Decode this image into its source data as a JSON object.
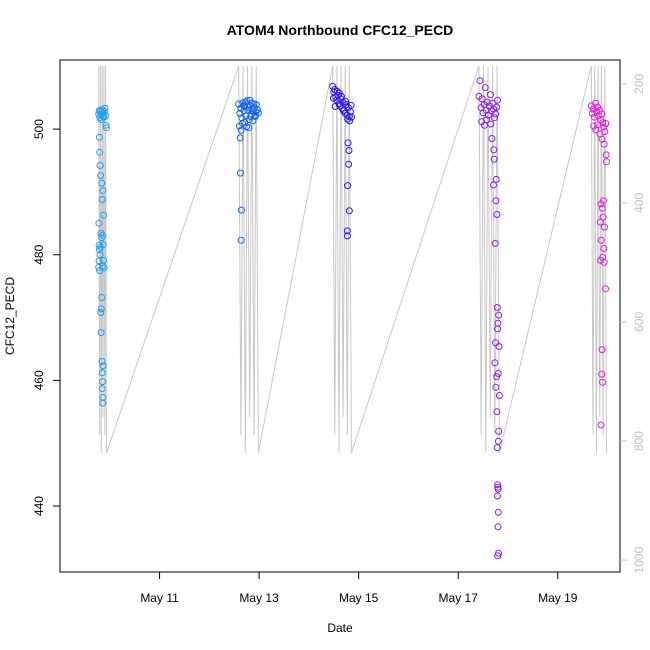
{
  "chart_data": {
    "type": "scatter",
    "title": "ATOM4 Northbound CFC12_PECD",
    "xlabel": "Date",
    "ylabel": "CFC12_PECD",
    "xlim": [
      "2016-05-09T00:00",
      "2016-05-20T06:00"
    ],
    "ylim": [
      429.5,
      511
    ],
    "y2lim": [
      1020,
      160
    ],
    "x_ticks": [
      {
        "date": "2016-05-11",
        "label": "May 11"
      },
      {
        "date": "2016-05-13",
        "label": "May 13"
      },
      {
        "date": "2016-05-15",
        "label": "May 15"
      },
      {
        "date": "2016-05-17",
        "label": "May 17"
      },
      {
        "date": "2016-05-19",
        "label": "May 19"
      }
    ],
    "y_ticks": [
      440,
      460,
      480,
      500
    ],
    "y2_ticks": [
      200,
      400,
      600,
      800,
      1000
    ],
    "colors": {
      "flight1": "#1f9fef",
      "flight2": "#1565e8",
      "flight3": "#2a17ea",
      "flight4": "#8a1bf2",
      "flight5": "#e51ae0",
      "pressure_line": "#c8c8c8"
    },
    "grid": false,
    "legend": "none",
    "series": [
      {
        "color_key": "flight1",
        "points": [
          [
            "2016-05-09T18:40",
            502.4
          ],
          [
            "2016-05-09T18:55",
            502.9
          ],
          [
            "2016-05-09T19:10",
            501.8
          ],
          [
            "2016-05-09T19:25",
            503.0
          ],
          [
            "2016-05-09T19:40",
            502.2
          ],
          [
            "2016-05-09T19:55",
            501.5
          ],
          [
            "2016-05-09T20:10",
            502.7
          ],
          [
            "2016-05-09T20:25",
            503.1
          ],
          [
            "2016-05-09T20:40",
            502.0
          ],
          [
            "2016-05-09T20:55",
            502.5
          ],
          [
            "2016-05-09T21:10",
            501.9
          ],
          [
            "2016-05-09T21:25",
            502.8
          ],
          [
            "2016-05-09T21:40",
            503.3
          ],
          [
            "2016-05-09T21:55",
            502.1
          ],
          [
            "2016-05-09T22:10",
            500.6
          ],
          [
            "2016-05-09T22:25",
            500.2
          ],
          [
            "2016-05-09T19:00",
            498.7
          ],
          [
            "2016-05-09T19:05",
            496.3
          ],
          [
            "2016-05-09T19:20",
            494.2
          ],
          [
            "2016-05-09T19:35",
            492.6
          ],
          [
            "2016-05-09T18:45",
            485.0
          ],
          [
            "2016-05-09T18:50",
            481.5
          ],
          [
            "2016-05-09T19:00",
            480.8
          ],
          [
            "2016-05-09T19:15",
            480.0
          ],
          [
            "2016-05-09T18:50",
            479.0
          ],
          [
            "2016-05-09T18:40",
            478.0
          ],
          [
            "2016-05-09T19:05",
            477.5
          ],
          [
            "2016-05-09T19:30",
            481.2
          ],
          [
            "2016-05-09T19:45",
            483.4
          ],
          [
            "2016-05-09T20:00",
            482.7
          ],
          [
            "2016-05-09T20:30",
            483.1
          ],
          [
            "2016-05-09T20:50",
            481.6
          ],
          [
            "2016-05-09T20:20",
            488.8
          ],
          [
            "2016-05-09T21:00",
            486.3
          ],
          [
            "2016-05-09T20:05",
            491.4
          ],
          [
            "2016-05-09T20:40",
            490.2
          ],
          [
            "2016-05-09T21:05",
            479.1
          ],
          [
            "2016-05-09T21:15",
            477.9
          ],
          [
            "2016-05-09T20:35",
            478.2
          ],
          [
            "2016-05-09T20:10",
            473.2
          ],
          [
            "2016-05-09T19:55",
            471.4
          ],
          [
            "2016-05-09T19:40",
            470.8
          ],
          [
            "2016-05-09T19:50",
            467.6
          ],
          [
            "2016-05-09T20:15",
            463.0
          ],
          [
            "2016-05-09T20:25",
            461.2
          ],
          [
            "2016-05-09T20:30",
            459.8
          ],
          [
            "2016-05-09T20:20",
            458.7
          ],
          [
            "2016-05-09T20:40",
            457.3
          ],
          [
            "2016-05-09T20:35",
            456.4
          ],
          [
            "2016-05-09T20:45",
            462.3
          ]
        ]
      },
      {
        "color_key": "flight2",
        "points": [
          [
            "2016-05-12T14:10",
            504.0
          ],
          [
            "2016-05-12T14:40",
            502.5
          ],
          [
            "2016-05-12T15:10",
            503.3
          ],
          [
            "2016-05-12T15:40",
            501.8
          ],
          [
            "2016-05-12T16:10",
            504.2
          ],
          [
            "2016-05-12T16:40",
            502.9
          ],
          [
            "2016-05-12T17:10",
            503.6
          ],
          [
            "2016-05-12T17:40",
            502.1
          ],
          [
            "2016-05-12T18:10",
            504.5
          ],
          [
            "2016-05-12T18:40",
            503.0
          ],
          [
            "2016-05-12T19:10",
            501.5
          ],
          [
            "2016-05-12T19:40",
            503.8
          ],
          [
            "2016-05-12T20:10",
            502.4
          ],
          [
            "2016-05-12T20:40",
            504.1
          ],
          [
            "2016-05-12T21:10",
            502.8
          ],
          [
            "2016-05-12T21:40",
            503.4
          ],
          [
            "2016-05-12T22:10",
            502.0
          ],
          [
            "2016-05-12T22:40",
            503.9
          ],
          [
            "2016-05-12T14:30",
            500.5
          ],
          [
            "2016-05-12T15:20",
            499.8
          ],
          [
            "2016-05-12T16:00",
            500.9
          ],
          [
            "2016-05-12T17:00",
            501.1
          ],
          [
            "2016-05-12T18:00",
            500.4
          ],
          [
            "2016-05-12T19:00",
            500.2
          ],
          [
            "2016-05-12T20:00",
            502.0
          ],
          [
            "2016-05-12T21:00",
            501.3
          ],
          [
            "2016-05-12T22:00",
            502.2
          ],
          [
            "2016-05-12T23:10",
            503.1
          ],
          [
            "2016-05-12T23:40",
            502.6
          ],
          [
            "2016-05-12T15:00",
            493.0
          ],
          [
            "2016-05-12T15:30",
            487.1
          ],
          [
            "2016-05-12T15:20",
            482.3
          ],
          [
            "2016-05-12T14:50",
            498.6
          ],
          [
            "2016-05-12T16:30",
            503.7
          ],
          [
            "2016-05-12T17:30",
            504.3
          ],
          [
            "2016-05-12T18:30",
            503.5
          ],
          [
            "2016-05-12T19:30",
            504.6
          ],
          [
            "2016-05-12T20:30",
            503.2
          ],
          [
            "2016-05-12T21:30",
            504.0
          ],
          [
            "2016-05-12T22:30",
            502.7
          ]
        ]
      },
      {
        "color_key": "flight3",
        "points": [
          [
            "2016-05-14T11:30",
            506.8
          ],
          [
            "2016-05-14T12:00",
            505.9
          ],
          [
            "2016-05-14T12:30",
            506.3
          ],
          [
            "2016-05-14T13:00",
            505.1
          ],
          [
            "2016-05-14T13:30",
            504.6
          ],
          [
            "2016-05-14T14:00",
            505.4
          ],
          [
            "2016-05-14T14:30",
            504.0
          ],
          [
            "2016-05-14T15:00",
            503.7
          ],
          [
            "2016-05-14T15:30",
            504.8
          ],
          [
            "2016-05-14T16:00",
            503.3
          ],
          [
            "2016-05-14T16:30",
            504.2
          ],
          [
            "2016-05-14T17:00",
            503.0
          ],
          [
            "2016-05-14T17:30",
            502.5
          ],
          [
            "2016-05-14T18:00",
            503.9
          ],
          [
            "2016-05-14T18:30",
            502.2
          ],
          [
            "2016-05-14T19:00",
            503.4
          ],
          [
            "2016-05-14T19:30",
            502.0
          ],
          [
            "2016-05-14T20:00",
            502.8
          ],
          [
            "2016-05-14T11:50",
            504.9
          ],
          [
            "2016-05-14T12:40",
            503.6
          ],
          [
            "2016-05-14T13:40",
            506.0
          ],
          [
            "2016-05-14T14:40",
            505.7
          ],
          [
            "2016-05-14T15:40",
            505.2
          ],
          [
            "2016-05-14T16:40",
            502.9
          ],
          [
            "2016-05-14T17:40",
            504.4
          ],
          [
            "2016-05-14T18:40",
            501.6
          ],
          [
            "2016-05-14T19:40",
            501.3
          ],
          [
            "2016-05-14T20:20",
            503.8
          ],
          [
            "2016-05-14T20:30",
            501.9
          ],
          [
            "2016-05-14T18:50",
            497.8
          ],
          [
            "2016-05-14T19:20",
            496.6
          ],
          [
            "2016-05-14T19:10",
            494.4
          ],
          [
            "2016-05-14T18:40",
            491.0
          ],
          [
            "2016-05-14T19:30",
            487.0
          ],
          [
            "2016-05-14T18:30",
            483.8
          ],
          [
            "2016-05-14T18:35",
            483.0
          ]
        ]
      },
      {
        "color_key": "flight4",
        "points": [
          [
            "2016-05-17T10:00",
            505.2
          ],
          [
            "2016-05-17T10:30",
            507.7
          ],
          [
            "2016-05-17T11:00",
            503.4
          ],
          [
            "2016-05-17T11:30",
            504.8
          ],
          [
            "2016-05-17T12:00",
            502.6
          ],
          [
            "2016-05-17T12:30",
            503.9
          ],
          [
            "2016-05-17T13:00",
            506.6
          ],
          [
            "2016-05-17T13:30",
            503.0
          ],
          [
            "2016-05-17T14:00",
            504.3
          ],
          [
            "2016-05-17T14:30",
            502.2
          ],
          [
            "2016-05-17T15:00",
            503.7
          ],
          [
            "2016-05-17T15:30",
            505.5
          ],
          [
            "2016-05-17T16:00",
            502.9
          ],
          [
            "2016-05-17T16:30",
            504.1
          ],
          [
            "2016-05-17T17:00",
            503.2
          ],
          [
            "2016-05-17T17:30",
            501.8
          ],
          [
            "2016-05-17T18:00",
            502.4
          ],
          [
            "2016-05-17T18:30",
            503.5
          ],
          [
            "2016-05-17T19:00",
            504.6
          ],
          [
            "2016-05-17T11:20",
            501.2
          ],
          [
            "2016-05-17T12:40",
            500.6
          ],
          [
            "2016-05-17T13:40",
            501.5
          ],
          [
            "2016-05-17T15:40",
            500.8
          ],
          [
            "2016-05-17T16:10",
            498.5
          ],
          [
            "2016-05-17T17:10",
            496.7
          ],
          [
            "2016-05-17T17:20",
            495.2
          ],
          [
            "2016-05-17T18:20",
            492.0
          ],
          [
            "2016-05-17T17:00",
            491.1
          ],
          [
            "2016-05-17T18:10",
            488.6
          ],
          [
            "2016-05-17T18:40",
            486.4
          ],
          [
            "2016-05-17T17:50",
            481.8
          ],
          [
            "2016-05-17T19:30",
            470.4
          ],
          [
            "2016-05-17T19:10",
            469.1
          ],
          [
            "2016-05-17T18:50",
            471.6
          ],
          [
            "2016-05-17T19:00",
            468.2
          ],
          [
            "2016-05-17T18:00",
            466.0
          ],
          [
            "2016-05-17T19:40",
            465.4
          ],
          [
            "2016-05-17T17:40",
            462.8
          ],
          [
            "2016-05-17T18:30",
            460.6
          ],
          [
            "2016-05-17T19:20",
            461.1
          ],
          [
            "2016-05-17T18:10",
            458.9
          ],
          [
            "2016-05-17T19:50",
            457.6
          ],
          [
            "2016-05-17T18:40",
            455.0
          ],
          [
            "2016-05-17T19:30",
            451.9
          ],
          [
            "2016-05-17T19:20",
            450.3
          ],
          [
            "2016-05-17T18:50",
            449.3
          ],
          [
            "2016-05-17T19:00",
            443.4
          ],
          [
            "2016-05-17T19:15",
            442.7
          ],
          [
            "2016-05-17T19:05",
            443.0
          ],
          [
            "2016-05-17T18:55",
            441.6
          ],
          [
            "2016-05-17T19:20",
            439.0
          ],
          [
            "2016-05-17T19:10",
            436.7
          ],
          [
            "2016-05-17T19:00",
            432.1
          ],
          [
            "2016-05-17T19:25",
            432.5
          ]
        ]
      },
      {
        "color_key": "flight5",
        "points": [
          [
            "2016-05-19T16:10",
            503.7
          ],
          [
            "2016-05-19T16:40",
            502.5
          ],
          [
            "2016-05-19T17:10",
            503.2
          ],
          [
            "2016-05-19T17:40",
            501.9
          ],
          [
            "2016-05-19T18:10",
            504.1
          ],
          [
            "2016-05-19T18:40",
            502.8
          ],
          [
            "2016-05-19T19:10",
            503.5
          ],
          [
            "2016-05-19T19:40",
            502.1
          ],
          [
            "2016-05-19T20:10",
            503.0
          ],
          [
            "2016-05-19T20:40",
            501.5
          ],
          [
            "2016-05-19T21:10",
            502.4
          ],
          [
            "2016-05-19T21:40",
            501.0
          ],
          [
            "2016-05-19T22:10",
            500.3
          ],
          [
            "2016-05-19T22:40",
            499.6
          ],
          [
            "2016-05-19T23:10",
            500.9
          ],
          [
            "2016-05-19T17:20",
            500.5
          ],
          [
            "2016-05-19T18:20",
            499.9
          ],
          [
            "2016-05-19T19:20",
            500.7
          ],
          [
            "2016-05-19T20:20",
            499.2
          ],
          [
            "2016-05-19T21:20",
            498.4
          ],
          [
            "2016-05-19T22:20",
            497.6
          ],
          [
            "2016-05-19T23:20",
            495.9
          ],
          [
            "2016-05-19T23:30",
            494.8
          ],
          [
            "2016-05-19T20:50",
            488.1
          ],
          [
            "2016-05-19T21:30",
            487.4
          ],
          [
            "2016-05-19T22:00",
            488.6
          ],
          [
            "2016-05-19T21:50",
            486.0
          ],
          [
            "2016-05-19T20:30",
            485.2
          ],
          [
            "2016-05-19T22:30",
            484.4
          ],
          [
            "2016-05-19T21:00",
            482.3
          ],
          [
            "2016-05-19T22:10",
            481.0
          ],
          [
            "2016-05-19T21:40",
            479.6
          ],
          [
            "2016-05-19T20:40",
            479.1
          ],
          [
            "2016-05-19T22:20",
            478.8
          ],
          [
            "2016-05-19T23:00",
            474.6
          ],
          [
            "2016-05-19T21:20",
            464.9
          ],
          [
            "2016-05-19T21:10",
            461.0
          ],
          [
            "2016-05-19T21:30",
            459.7
          ],
          [
            "2016-05-19T20:50",
            452.9
          ]
        ]
      }
    ]
  }
}
